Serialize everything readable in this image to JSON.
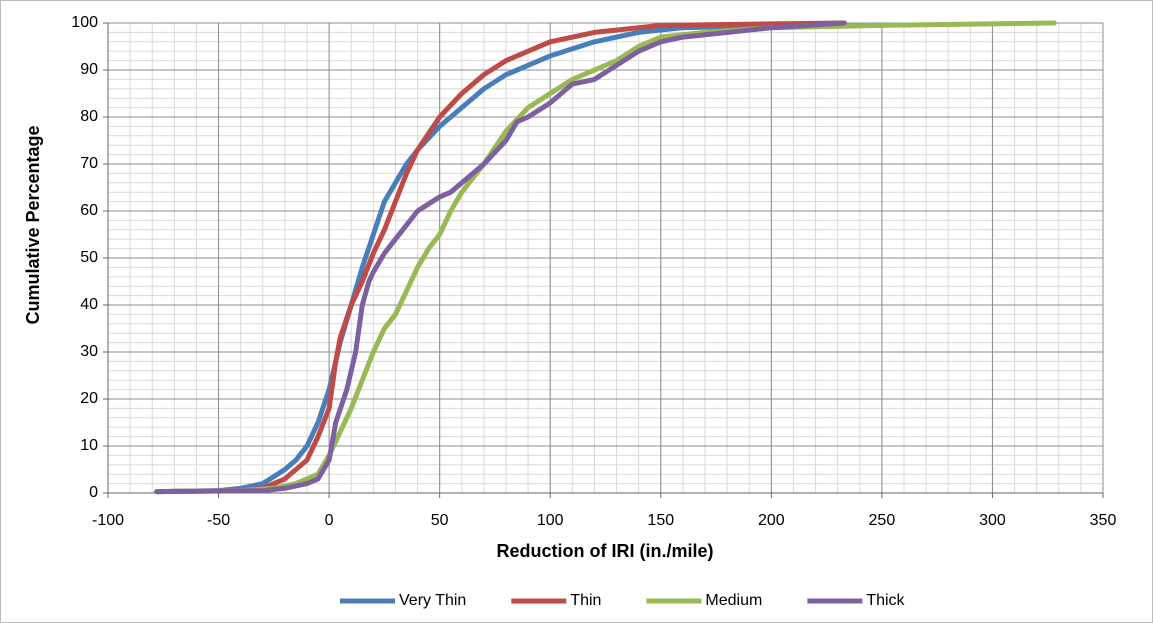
{
  "chart_data": {
    "type": "line",
    "x_label": "Reduction of IRI (in./mile)",
    "y_label": "Cumulative Percentage",
    "xlim": [
      -100,
      350
    ],
    "xticks": [
      -100,
      -50,
      0,
      50,
      100,
      150,
      200,
      250,
      300,
      350
    ],
    "ylim": [
      0,
      100
    ],
    "yticks": [
      0,
      10,
      20,
      30,
      40,
      50,
      60,
      70,
      80,
      90,
      100
    ],
    "grid": true,
    "minor_grid": {
      "x_step": 10,
      "y_step": 2
    },
    "legend": "bottom",
    "series": [
      {
        "name": "Very Thin",
        "color": "#4a7ebb",
        "x": [
          -78,
          -50,
          -40,
          -30,
          -20,
          -15,
          -10,
          -5,
          0,
          5,
          10,
          15,
          20,
          25,
          30,
          35,
          40,
          50,
          60,
          70,
          80,
          90,
          100,
          120,
          140,
          160,
          200,
          233
        ],
        "values": [
          0.3,
          0.5,
          1,
          2,
          5,
          7,
          10,
          15,
          22,
          32,
          40,
          48,
          55,
          62,
          66,
          70,
          73,
          78,
          82,
          86,
          89,
          91,
          93,
          96,
          98,
          99,
          99.5,
          100
        ]
      },
      {
        "name": "Thin",
        "color": "#be4b48",
        "x": [
          -78,
          -40,
          -30,
          -20,
          -10,
          -5,
          0,
          3,
          5,
          10,
          15,
          20,
          25,
          30,
          35,
          40,
          50,
          60,
          70,
          80,
          90,
          100,
          120,
          150,
          233
        ],
        "values": [
          0.3,
          0.5,
          1,
          3,
          7,
          12,
          18,
          28,
          33,
          40,
          45,
          51,
          56,
          62,
          68,
          73,
          80,
          85,
          89,
          92,
          94,
          96,
          98,
          99.5,
          100
        ]
      },
      {
        "name": "Medium",
        "color": "#98b954",
        "x": [
          -78,
          -40,
          -25,
          -15,
          -5,
          0,
          5,
          10,
          15,
          20,
          25,
          30,
          35,
          40,
          45,
          50,
          55,
          60,
          70,
          80,
          90,
          100,
          110,
          120,
          130,
          140,
          150,
          170,
          200,
          250,
          328
        ],
        "values": [
          0.3,
          0.5,
          1,
          2,
          4,
          8,
          13,
          18,
          24,
          30,
          35,
          38,
          43,
          48,
          52,
          55,
          60,
          64,
          70,
          77,
          82,
          85,
          88,
          90,
          92,
          95,
          97,
          98,
          99,
          99.5,
          100
        ]
      },
      {
        "name": "Thick",
        "color": "#7d60a0",
        "x": [
          -78,
          -30,
          -20,
          -10,
          -5,
          0,
          3,
          8,
          12,
          15,
          18,
          20,
          25,
          30,
          35,
          40,
          50,
          55,
          60,
          70,
          80,
          85,
          90,
          100,
          110,
          120,
          130,
          140,
          150,
          160,
          200,
          233
        ],
        "values": [
          0.3,
          0.5,
          1,
          2,
          3,
          7,
          15,
          22,
          30,
          40,
          45,
          47,
          51,
          54,
          57,
          60,
          63,
          64,
          66,
          70,
          75,
          79,
          80,
          83,
          87,
          88,
          91,
          94,
          96,
          97,
          99,
          100
        ]
      }
    ]
  }
}
